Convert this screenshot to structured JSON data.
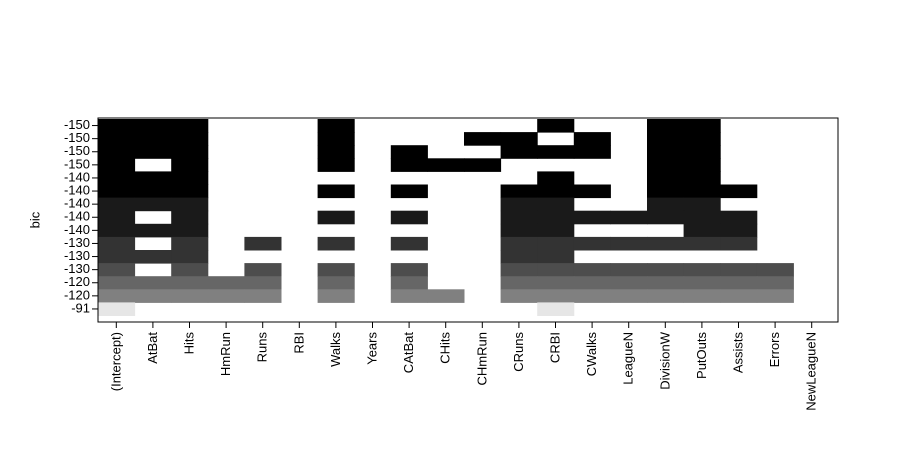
{
  "chart_data": {
    "type": "heatmap",
    "ylabel": "bic",
    "variables": [
      "(Intercept)",
      "AtBat",
      "Hits",
      "HmRun",
      "Runs",
      "RBI",
      "Walks",
      "Years",
      "CAtBat",
      "CHits",
      "CHmRun",
      "CRuns",
      "CRBI",
      "CWalks",
      "LeagueN",
      "DivisionW",
      "PutOuts",
      "Assists",
      "Errors",
      "NewLeagueN"
    ],
    "rows": [
      {
        "label": "-150",
        "color": "#000000",
        "selected": [
          0,
          1,
          2,
          6,
          12,
          15,
          16
        ]
      },
      {
        "label": "-150",
        "color": "#000000",
        "selected": [
          0,
          1,
          2,
          6,
          10,
          11,
          13,
          15,
          16
        ]
      },
      {
        "label": "-150",
        "color": "#000000",
        "selected": [
          0,
          1,
          2,
          6,
          8,
          11,
          12,
          13,
          15,
          16
        ]
      },
      {
        "label": "-150",
        "color": "#000000",
        "selected": [
          0,
          2,
          6,
          8,
          9,
          10,
          15,
          16
        ]
      },
      {
        "label": "-140",
        "color": "#000000",
        "selected": [
          0,
          1,
          2,
          12,
          15,
          16
        ]
      },
      {
        "label": "-140",
        "color": "#000000",
        "selected": [
          0,
          1,
          2,
          6,
          8,
          11,
          12,
          13,
          15,
          16,
          17
        ]
      },
      {
        "label": "-140",
        "color": "#1a1a1a",
        "selected": [
          0,
          1,
          2,
          11,
          12,
          15,
          16
        ]
      },
      {
        "label": "-140",
        "color": "#1a1a1a",
        "selected": [
          0,
          2,
          6,
          8,
          11,
          12,
          13,
          14,
          15,
          16,
          17
        ]
      },
      {
        "label": "-140",
        "color": "#1a1a1a",
        "selected": [
          0,
          1,
          2,
          11,
          12,
          16,
          17
        ]
      },
      {
        "label": "-130",
        "color": "#333333",
        "selected": [
          0,
          2,
          4,
          6,
          8,
          11,
          12,
          13,
          14,
          15,
          16,
          17
        ]
      },
      {
        "label": "-130",
        "color": "#333333",
        "selected": [
          0,
          1,
          2,
          11,
          12
        ]
      },
      {
        "label": "-130",
        "color": "#4d4d4d",
        "selected": [
          0,
          2,
          4,
          6,
          8,
          11,
          12,
          13,
          14,
          15,
          16,
          17,
          18
        ]
      },
      {
        "label": "-120",
        "color": "#666666",
        "selected": [
          0,
          1,
          2,
          3,
          4,
          6,
          8,
          11,
          12,
          13,
          14,
          15,
          16,
          17,
          18
        ]
      },
      {
        "label": "-120",
        "color": "#808080",
        "selected": [
          0,
          1,
          2,
          3,
          4,
          6,
          8,
          9,
          11,
          12,
          13,
          14,
          15,
          16,
          17,
          18
        ]
      },
      {
        "label": "-91",
        "color": "#e6e6e6",
        "selected": [
          0,
          12
        ]
      }
    ]
  }
}
